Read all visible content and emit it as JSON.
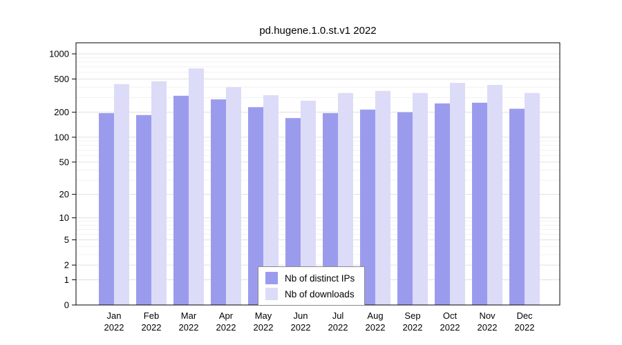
{
  "title": "pd.hugene.1.0.st.v1 2022",
  "chart_data": {
    "type": "bar",
    "title": "pd.hugene.1.0.st.v1 2022",
    "categories": [
      "Jan",
      "Feb",
      "Mar",
      "Apr",
      "May",
      "Jun",
      "Jul",
      "Aug",
      "Sep",
      "Oct",
      "Nov",
      "Dec"
    ],
    "year": "2022",
    "series": [
      {
        "name": "Nb of distinct IPs",
        "color": "#9b9bee",
        "values": [
          195,
          185,
          315,
          285,
          230,
          170,
          195,
          215,
          200,
          255,
          260,
          220
        ]
      },
      {
        "name": "Nb of downloads",
        "color": "#dcdcf8",
        "values": [
          435,
          470,
          670,
          400,
          320,
          275,
          340,
          360,
          340,
          450,
          425,
          340
        ]
      }
    ],
    "yticks": [
      0,
      1,
      2,
      5,
      10,
      20,
      50,
      100,
      200,
      500,
      1000
    ],
    "minor_gridlines": [
      3,
      4,
      6,
      7,
      8,
      9,
      30,
      40,
      60,
      70,
      80,
      90,
      300,
      400,
      600,
      700,
      800,
      900
    ],
    "scale": "log10(value+1)",
    "ylim": [
      0,
      1050
    ],
    "xlabel": "",
    "ylabel": "",
    "grid": true,
    "legend_position": "bottom-center"
  }
}
